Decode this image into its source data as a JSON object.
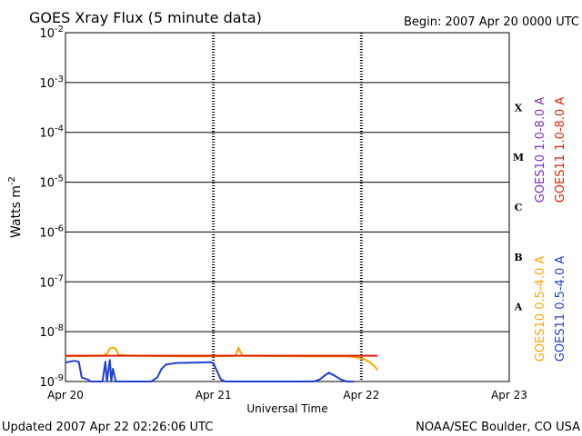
{
  "chart_data": {
    "type": "line",
    "title": "GOES Xray Flux (5 minute data)",
    "begin_text": "Begin:  2007 Apr 20 0000 UTC",
    "xlabel": "Universal Time",
    "ylabel": "Watts m",
    "ylabel_exponent": "-2",
    "y_scale": "log",
    "ylim": [
      1e-09,
      0.01
    ],
    "y_ticks": [
      {
        "base": "10",
        "exp": "-2",
        "value": 0.01
      },
      {
        "base": "10",
        "exp": "-3",
        "value": 0.001
      },
      {
        "base": "10",
        "exp": "-4",
        "value": 0.0001
      },
      {
        "base": "10",
        "exp": "-5",
        "value": 1e-05
      },
      {
        "base": "10",
        "exp": "-6",
        "value": 1e-06
      },
      {
        "base": "10",
        "exp": "-7",
        "value": 1e-07
      },
      {
        "base": "10",
        "exp": "-8",
        "value": 1e-08
      },
      {
        "base": "10",
        "exp": "-9",
        "value": 1e-09
      }
    ],
    "xlim_days": [
      0,
      3
    ],
    "x_ticks": [
      {
        "label": "Apr 20",
        "day": 0
      },
      {
        "label": "Apr 21",
        "day": 1
      },
      {
        "label": "Apr 22",
        "day": 2
      },
      {
        "label": "Apr 23",
        "day": 3
      }
    ],
    "flare_classes": [
      {
        "label": "X",
        "value": 0.000316
      },
      {
        "label": "M",
        "value": 3.16e-05
      },
      {
        "label": "C",
        "value": 3.16e-06
      },
      {
        "label": "B",
        "value": 3.16e-07
      },
      {
        "label": "A",
        "value": 3.16e-08
      }
    ],
    "grid": "horizontal at each decade",
    "series": [
      {
        "name": "GOES10 0.5-4.0 A",
        "color": "#ffa500",
        "points": [
          [
            0.0,
            3.2e-09
          ],
          [
            0.25,
            3.3e-09
          ],
          [
            0.28,
            3.6e-09
          ],
          [
            0.3,
            4.6e-09
          ],
          [
            0.32,
            4.8e-09
          ],
          [
            0.34,
            4.5e-09
          ],
          [
            0.36,
            3.4e-09
          ],
          [
            0.45,
            3.3e-09
          ],
          [
            0.8,
            3.2e-09
          ],
          [
            1.0,
            3.2e-09
          ],
          [
            1.15,
            3.3e-09
          ],
          [
            1.17,
            4.8e-09
          ],
          [
            1.18,
            4e-09
          ],
          [
            1.2,
            3.3e-09
          ],
          [
            1.6,
            3.2e-09
          ],
          [
            1.9,
            3.2e-09
          ],
          [
            1.98,
            3e-09
          ],
          [
            2.02,
            2.8e-09
          ],
          [
            2.06,
            2.4e-09
          ],
          [
            2.09,
            2e-09
          ],
          [
            2.11,
            1.7e-09
          ]
        ]
      },
      {
        "name": "GOES11 0.5-4.0 A",
        "color": "#1f3fd6",
        "points": [
          [
            0.0,
            2.4e-09
          ],
          [
            0.06,
            2.6e-09
          ],
          [
            0.09,
            2.5e-09
          ],
          [
            0.11,
            1.2e-09
          ],
          [
            0.15,
            1.1e-09
          ],
          [
            0.17,
            9e-10
          ],
          [
            0.25,
            9e-10
          ],
          [
            0.27,
            2.5e-09
          ],
          [
            0.28,
            1e-09
          ],
          [
            0.3,
            2.7e-09
          ],
          [
            0.31,
            9e-10
          ],
          [
            0.32,
            1.8e-09
          ],
          [
            0.34,
            9e-10
          ],
          [
            0.4,
            8e-10
          ],
          [
            0.5,
            7e-10
          ],
          [
            0.58,
            8e-10
          ],
          [
            0.62,
            1.2e-09
          ],
          [
            0.65,
            1.8e-09
          ],
          [
            0.68,
            2.2e-09
          ],
          [
            0.75,
            2.35e-09
          ],
          [
            0.9,
            2.4e-09
          ],
          [
            0.98,
            2.45e-09
          ],
          [
            1.0,
            2.3e-09
          ],
          [
            1.03,
            1.5e-09
          ],
          [
            1.05,
            1.1e-09
          ],
          [
            1.08,
            9e-10
          ],
          [
            1.2,
            7e-10
          ],
          [
            1.6,
            7e-10
          ],
          [
            1.68,
            8e-10
          ],
          [
            1.72,
            1.1e-09
          ],
          [
            1.75,
            1.3e-09
          ],
          [
            1.78,
            1.5e-09
          ],
          [
            1.82,
            1.3e-09
          ],
          [
            1.86,
            1.1e-09
          ],
          [
            1.9,
            9e-10
          ],
          [
            1.95,
            7.5e-10
          ]
        ]
      },
      {
        "name": "GOES11 1.0-8.0 A",
        "color": "#dd2200",
        "points": [
          [
            0.0,
            3.3e-09
          ],
          [
            2.11,
            3.3e-09
          ]
        ]
      },
      {
        "name": "GOES10 1.0-8.0 A",
        "color": "#7b2fbe",
        "points": []
      }
    ],
    "legend_upper": [
      {
        "text": "GOES10 1.0-8.0 A",
        "color": "#7b2fbe"
      },
      {
        "text": "GOES11 1.0-8.0 A",
        "color": "#dd2200"
      }
    ],
    "legend_lower": [
      {
        "text": "GOES10 0.5-4.0 A",
        "color": "#ffa500"
      },
      {
        "text": "GOES11 0.5-4.0 A",
        "color": "#1f3fd6"
      }
    ]
  },
  "footer": {
    "updated": "Updated 2007 Apr 22 02:26:06 UTC",
    "source": "NOAA/SEC Boulder, CO USA"
  }
}
